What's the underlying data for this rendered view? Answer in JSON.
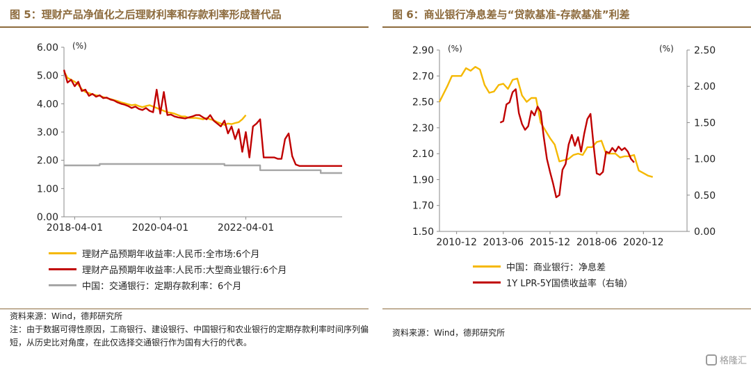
{
  "left": {
    "title": "图 5：理财产品净值化之后理财利率和存款利率形成替代品",
    "source": "资料来源：Wind，德邦研究所",
    "note": "注：由于数据可得性原因，工商银行、建设银行、中国银行和农业银行的定期存款利率时间序列偏短，从历史比对角度，在此仅选择交通银行作为国有大行的代表。"
  },
  "right": {
    "title": "图 6：商业银行净息差与“贷款基准-存款基准”利差",
    "source": "资料来源：Wind，德邦研究所"
  },
  "watermark": "格隆汇",
  "chart_data": [
    {
      "type": "line",
      "x_start": "2018-01",
      "x_end": "2024-07",
      "xticks": [
        "2018-04-01",
        "2020-04-01",
        "2022-04-01"
      ],
      "xtick_months": [
        3,
        27,
        51
      ],
      "ylim": [
        0,
        6
      ],
      "yticks": [
        "0.00",
        "1.00",
        "2.00",
        "3.00",
        "4.00",
        "5.00",
        "6.00"
      ],
      "yunit": "(%)",
      "colors": [
        "#f5b800",
        "#c00000",
        "#a6a6a6"
      ],
      "series": [
        {
          "name": "理财产品预期年收益率:人民币:全市场:6个月",
          "points": [
            [
              0,
              5.15
            ],
            [
              1,
              4.92
            ],
            [
              2,
              4.85
            ],
            [
              3,
              4.78
            ],
            [
              4,
              4.68
            ],
            [
              5,
              4.52
            ],
            [
              6,
              4.42
            ],
            [
              7,
              4.38
            ],
            [
              8,
              4.33
            ],
            [
              9,
              4.3
            ],
            [
              10,
              4.28
            ],
            [
              11,
              4.24
            ],
            [
              12,
              4.2
            ],
            [
              13,
              4.17
            ],
            [
              14,
              4.13
            ],
            [
              15,
              4.1
            ],
            [
              16,
              4.05
            ],
            [
              17,
              4.02
            ],
            [
              18,
              3.98
            ],
            [
              19,
              3.95
            ],
            [
              20,
              3.97
            ],
            [
              21,
              3.92
            ],
            [
              22,
              3.88
            ],
            [
              23,
              3.92
            ],
            [
              24,
              3.95
            ],
            [
              25,
              3.9
            ],
            [
              26,
              3.85
            ],
            [
              27,
              3.8
            ],
            [
              28,
              3.75
            ],
            [
              29,
              3.7
            ],
            [
              30,
              3.68
            ],
            [
              31,
              3.65
            ],
            [
              32,
              3.6
            ],
            [
              33,
              3.55
            ],
            [
              34,
              3.55
            ],
            [
              35,
              3.5
            ],
            [
              36,
              3.5
            ],
            [
              37,
              3.5
            ],
            [
              38,
              3.48
            ],
            [
              39,
              3.45
            ],
            [
              40,
              3.5
            ],
            [
              41,
              3.45
            ],
            [
              42,
              3.42
            ],
            [
              43,
              3.35
            ],
            [
              44,
              3.3
            ],
            [
              45,
              3.25
            ],
            [
              46,
              3.3
            ],
            [
              47,
              3.28
            ],
            [
              48,
              3.32
            ],
            [
              49,
              3.35
            ],
            [
              50,
              3.45
            ],
            [
              51,
              3.6
            ]
          ]
        },
        {
          "name": "理财产品预期年收益率:人民币:大型商业银行:6个月",
          "points": [
            [
              0,
              5.2
            ],
            [
              1,
              4.75
            ],
            [
              2,
              4.85
            ],
            [
              3,
              4.62
            ],
            [
              4,
              4.78
            ],
            [
              5,
              4.45
            ],
            [
              6,
              4.5
            ],
            [
              7,
              4.28
            ],
            [
              8,
              4.35
            ],
            [
              9,
              4.25
            ],
            [
              10,
              4.3
            ],
            [
              11,
              4.2
            ],
            [
              12,
              4.22
            ],
            [
              13,
              4.15
            ],
            [
              14,
              4.12
            ],
            [
              15,
              4.05
            ],
            [
              16,
              4.0
            ],
            [
              17,
              3.97
            ],
            [
              18,
              3.92
            ],
            [
              19,
              3.85
            ],
            [
              20,
              3.9
            ],
            [
              21,
              3.82
            ],
            [
              22,
              3.78
            ],
            [
              23,
              3.85
            ],
            [
              24,
              3.75
            ],
            [
              25,
              3.7
            ],
            [
              26,
              4.5
            ],
            [
              27,
              3.65
            ],
            [
              28,
              4.42
            ],
            [
              29,
              3.6
            ],
            [
              30,
              3.62
            ],
            [
              31,
              3.55
            ],
            [
              32,
              3.52
            ],
            [
              33,
              3.5
            ],
            [
              34,
              3.48
            ],
            [
              35,
              3.52
            ],
            [
              36,
              3.55
            ],
            [
              37,
              3.6
            ],
            [
              38,
              3.6
            ],
            [
              39,
              3.52
            ],
            [
              40,
              3.45
            ],
            [
              41,
              3.6
            ],
            [
              42,
              3.4
            ],
            [
              43,
              3.3
            ],
            [
              44,
              3.2
            ],
            [
              45,
              3.4
            ],
            [
              46,
              2.95
            ],
            [
              47,
              3.2
            ],
            [
              48,
              2.75
            ],
            [
              49,
              3.1
            ],
            [
              50,
              2.3
            ],
            [
              51,
              3.0
            ],
            [
              52,
              2.1
            ],
            [
              53,
              3.2
            ],
            [
              54,
              3.3
            ],
            [
              55,
              3.45
            ],
            [
              56,
              2.1
            ],
            [
              57,
              2.1
            ],
            [
              58,
              2.1
            ],
            [
              59,
              2.1
            ],
            [
              60,
              2.05
            ],
            [
              61,
              2.05
            ],
            [
              62,
              2.75
            ],
            [
              63,
              2.95
            ],
            [
              64,
              2.15
            ],
            [
              65,
              1.85
            ],
            [
              66,
              1.8
            ],
            [
              67,
              1.8
            ],
            [
              68,
              1.8
            ],
            [
              69,
              1.8
            ],
            [
              70,
              1.8
            ],
            [
              71,
              1.8
            ],
            [
              72,
              1.8
            ],
            [
              73,
              1.8
            ],
            [
              74,
              1.8
            ],
            [
              75,
              1.8
            ],
            [
              76,
              1.8
            ],
            [
              77,
              1.8
            ],
            [
              78,
              1.8
            ]
          ]
        },
        {
          "name": "中国：交通银行：定期存款利率：6个月",
          "points": [
            [
              0,
              1.82
            ],
            [
              10,
              1.82
            ],
            [
              10,
              1.87
            ],
            [
              45,
              1.87
            ],
            [
              45,
              1.82
            ],
            [
              55,
              1.82
            ],
            [
              55,
              1.65
            ],
            [
              72,
              1.65
            ],
            [
              72,
              1.55
            ],
            [
              78,
              1.55
            ]
          ]
        }
      ]
    },
    {
      "type": "line",
      "x_start": "2010-01",
      "x_end": "2023-04",
      "xticks": [
        "2010-12",
        "2013-06",
        "2015-12",
        "2018-06",
        "2020-12"
      ],
      "xtick_months": [
        11,
        41,
        71,
        101,
        131
      ],
      "ylim": [
        1.5,
        2.9
      ],
      "yticks": [
        "1.50",
        "1.70",
        "1.90",
        "2.10",
        "2.30",
        "2.50",
        "2.70",
        "2.90"
      ],
      "yunit": "(%)",
      "y2lim": [
        0,
        2.5
      ],
      "y2ticks": [
        "0.00",
        "0.50",
        "1.00",
        "1.50",
        "2.00",
        "2.50"
      ],
      "y2unit": "(%)",
      "colors": [
        "#f5b800",
        "#c00000"
      ],
      "series": [
        {
          "name": "中国：商业银行：净息差",
          "axis": "left",
          "points": [
            [
              0,
              2.5
            ],
            [
              5,
              2.62
            ],
            [
              8,
              2.7
            ],
            [
              11,
              2.7
            ],
            [
              14,
              2.7
            ],
            [
              17,
              2.76
            ],
            [
              20,
              2.74
            ],
            [
              23,
              2.77
            ],
            [
              26,
              2.75
            ],
            [
              29,
              2.63
            ],
            [
              32,
              2.57
            ],
            [
              35,
              2.58
            ],
            [
              38,
              2.63
            ],
            [
              41,
              2.64
            ],
            [
              44,
              2.6
            ],
            [
              47,
              2.67
            ],
            [
              50,
              2.68
            ],
            [
              53,
              2.55
            ],
            [
              56,
              2.5
            ],
            [
              59,
              2.53
            ],
            [
              62,
              2.53
            ],
            [
              65,
              2.34
            ],
            [
              68,
              2.28
            ],
            [
              71,
              2.22
            ],
            [
              74,
              2.17
            ],
            [
              77,
              2.04
            ],
            [
              80,
              2.05
            ],
            [
              83,
              2.06
            ],
            [
              86,
              2.09
            ],
            [
              89,
              2.1
            ],
            [
              92,
              2.09
            ],
            [
              95,
              2.15
            ],
            [
              98,
              2.15
            ],
            [
              101,
              2.19
            ],
            [
              104,
              2.2
            ],
            [
              107,
              2.1
            ],
            [
              110,
              2.1
            ],
            [
              113,
              2.1
            ],
            [
              116,
              2.07
            ],
            [
              119,
              2.08
            ],
            [
              122,
              2.08
            ],
            [
              125,
              2.09
            ],
            [
              128,
              1.97
            ],
            [
              131,
              1.95
            ],
            [
              134,
              1.93
            ],
            [
              137,
              1.92
            ]
          ]
        },
        {
          "name": "1Y LPR-5Y国债收益率（右轴）",
          "axis": "right",
          "points": [
            [
              39,
              1.5
            ],
            [
              41,
              1.52
            ],
            [
              43,
              1.75
            ],
            [
              45,
              1.78
            ],
            [
              47,
              1.92
            ],
            [
              49,
              1.96
            ],
            [
              51,
              1.63
            ],
            [
              53,
              1.48
            ],
            [
              55,
              1.4
            ],
            [
              57,
              1.45
            ],
            [
              59,
              1.66
            ],
            [
              61,
              1.6
            ],
            [
              63,
              1.72
            ],
            [
              65,
              1.65
            ],
            [
              67,
              1.3
            ],
            [
              69,
              1.0
            ],
            [
              71,
              0.82
            ],
            [
              73,
              0.66
            ],
            [
              75,
              0.47
            ],
            [
              77,
              0.5
            ],
            [
              79,
              0.85
            ],
            [
              81,
              0.93
            ],
            [
              83,
              1.2
            ],
            [
              85,
              1.33
            ],
            [
              87,
              1.18
            ],
            [
              89,
              1.3
            ],
            [
              91,
              1.1
            ],
            [
              93,
              1.35
            ],
            [
              95,
              1.55
            ],
            [
              97,
              1.62
            ],
            [
              99,
              1.18
            ],
            [
              101,
              0.8
            ],
            [
              103,
              0.78
            ],
            [
              105,
              0.82
            ],
            [
              107,
              1.1
            ],
            [
              109,
              1.08
            ],
            [
              111,
              1.15
            ],
            [
              113,
              1.1
            ],
            [
              115,
              1.17
            ],
            [
              117,
              1.12
            ],
            [
              119,
              1.15
            ],
            [
              121,
              1.1
            ],
            [
              123,
              1.0
            ],
            [
              125,
              0.95
            ]
          ]
        }
      ]
    }
  ]
}
